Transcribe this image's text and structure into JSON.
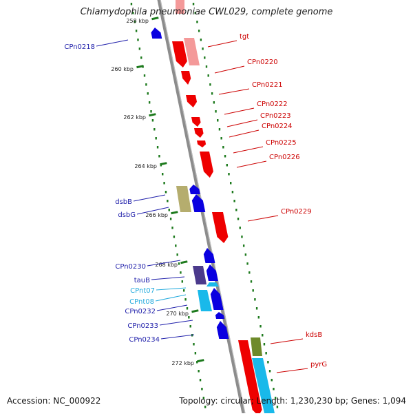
{
  "title": "Chlamydophila pneumoniae CWL029, complete genome",
  "footer": {
    "accession": "Accession: NC_000922",
    "stats": "Topology: circular; Length: 1,230,230 bp; Genes: 1,094"
  },
  "colors": {
    "backbone": "#8c8c8c",
    "forward_cds": "#ee0000",
    "forward_rna": "#f49999",
    "reverse_cds": "#0a00e0",
    "reverse_rna": "#b5ad6e",
    "dark_violet": "#4b3a8c",
    "cyan": "#19b9ea",
    "olive": "#6e8a2a",
    "ruler": "#1d7a1d",
    "label_forward": "#cc0000",
    "label_reverse": "#1e1eaa",
    "label_cyan": "#22aadd"
  },
  "ruler_ticks": [
    {
      "label": "258 kbp"
    },
    {
      "label": "260 kbp"
    },
    {
      "label": "262 kbp"
    },
    {
      "label": "264 kbp"
    },
    {
      "label": "266 kbp"
    },
    {
      "label": "268 kbp"
    },
    {
      "label": "270 kbp"
    },
    {
      "label": "272 kbp"
    }
  ],
  "features_forward": [
    {
      "label": "tgt"
    },
    {
      "label": "CPn0220"
    },
    {
      "label": "CPn0221"
    },
    {
      "label": "CPn0222"
    },
    {
      "label": "CPn0223"
    },
    {
      "label": "CPn0224"
    },
    {
      "label": "CPn0225"
    },
    {
      "label": "CPn0226"
    },
    {
      "label": "CPn0229"
    },
    {
      "label": "kdsB"
    },
    {
      "label": "pyrG"
    }
  ],
  "features_reverse": [
    {
      "label": "CPn0218"
    },
    {
      "label": "dsbB"
    },
    {
      "label": "dsbG"
    },
    {
      "label": "CPn0230"
    },
    {
      "label": "tauB"
    },
    {
      "label": "CPnt07"
    },
    {
      "label": "CPnt08"
    },
    {
      "label": "CPn0232"
    },
    {
      "label": "CPn0233"
    },
    {
      "label": "CPn0234"
    }
  ]
}
